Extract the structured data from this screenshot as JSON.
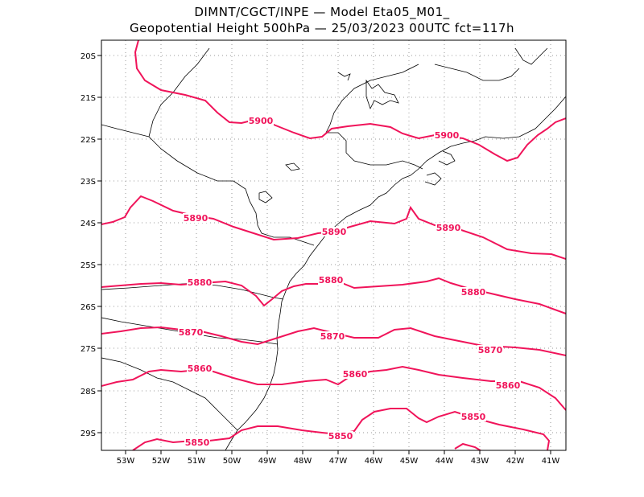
{
  "header": {
    "title_line1": "DIMNT/CGCT/INPE —  Model Eta05_M01_",
    "title_line2": "Geopotential Height 500hPa —  25/03/2023 00UTC fct=117h"
  },
  "colors": {
    "contour": "#f0145a",
    "coast": "#000000",
    "grid": "#9a9a9a"
  },
  "lat_ticks": [
    "20S",
    "21S",
    "22S",
    "23S",
    "24S",
    "25S",
    "26S",
    "27S",
    "28S",
    "29S"
  ],
  "lon_ticks": [
    "53W",
    "52W",
    "51W",
    "50W",
    "49W",
    "48W",
    "47W",
    "46W",
    "45W",
    "44W",
    "43W",
    "42W",
    "41W"
  ],
  "contours": [
    {
      "label": "5900"
    },
    {
      "label": "5890"
    },
    {
      "label": "5880"
    },
    {
      "label": "5870"
    },
    {
      "label": "5860"
    },
    {
      "label": "5850"
    }
  ]
}
